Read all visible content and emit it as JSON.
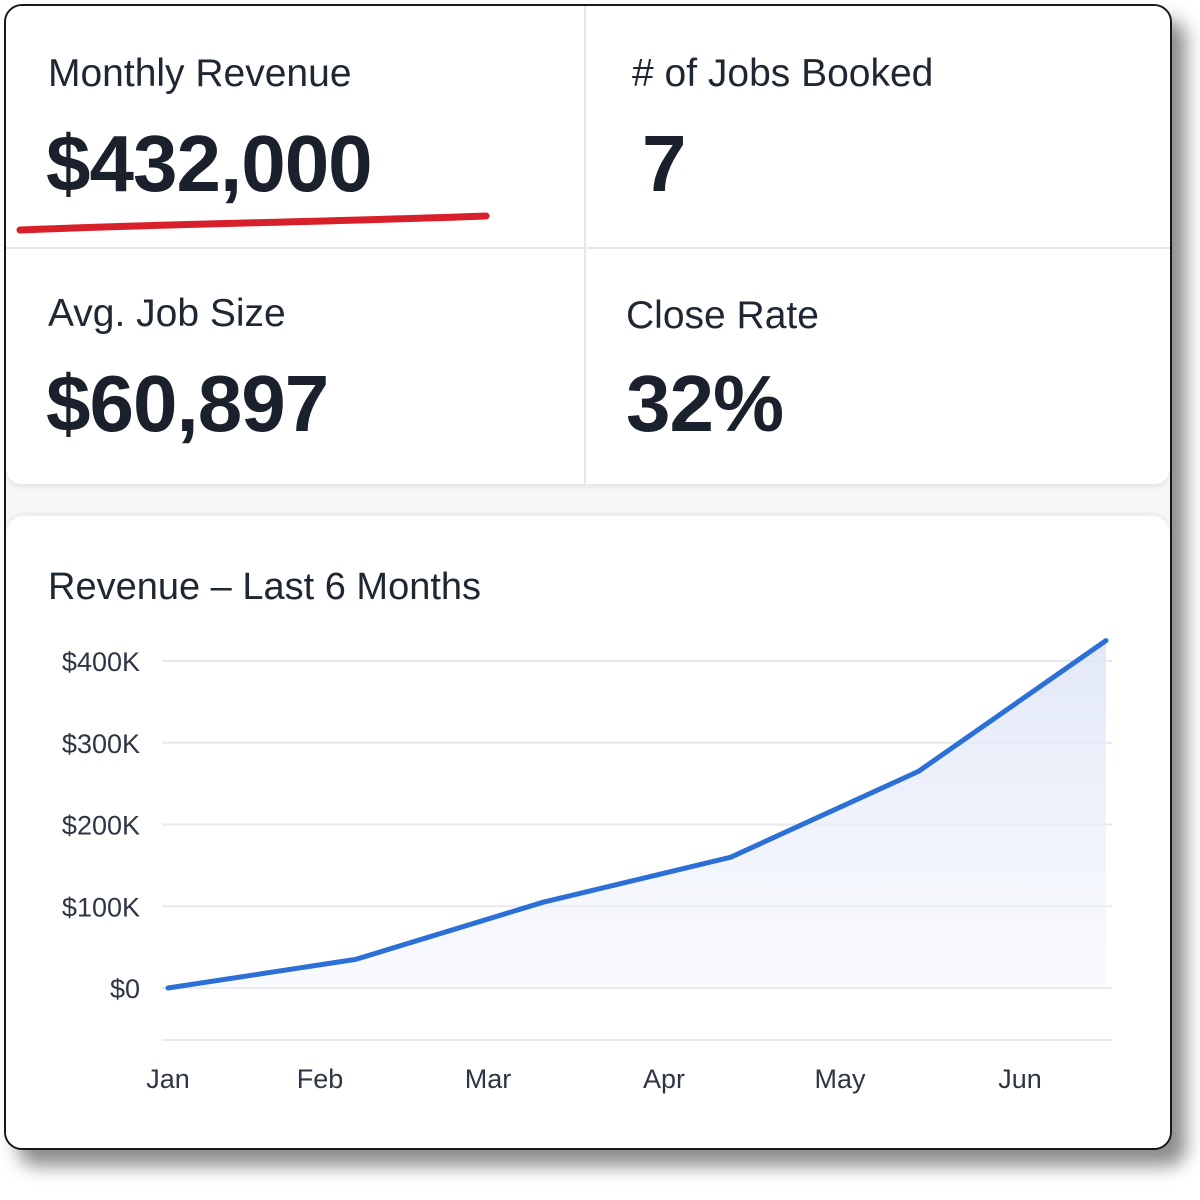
{
  "kpis": {
    "monthly_revenue": {
      "label": "Monthly Revenue",
      "value": "$432,000"
    },
    "jobs_booked": {
      "label": "# of Jobs Booked",
      "value": "7"
    },
    "avg_job_size": {
      "label": "Avg. Job Size",
      "value": "$60,897"
    },
    "close_rate": {
      "label": "Close Rate",
      "value": "32%"
    }
  },
  "colors": {
    "accent_line": "#2c6fd6",
    "highlight_underline": "#d8202a"
  },
  "chart_data": {
    "type": "area",
    "title": "Revenue – Last 6 Months",
    "categories": [
      "Jan",
      "Feb",
      "Mar",
      "Apr",
      "May",
      "Jun"
    ],
    "series": [
      {
        "values": [
          0,
          35000,
          105000,
          160000,
          265000,
          425000
        ]
      }
    ],
    "y_ticks": [
      "$0",
      "$100K",
      "$200K",
      "$300K",
      "$400K"
    ],
    "y_tick_values": [
      0,
      100000,
      200000,
      300000,
      400000
    ],
    "ylim": [
      0,
      400000
    ],
    "grid": true,
    "legend": "none"
  }
}
